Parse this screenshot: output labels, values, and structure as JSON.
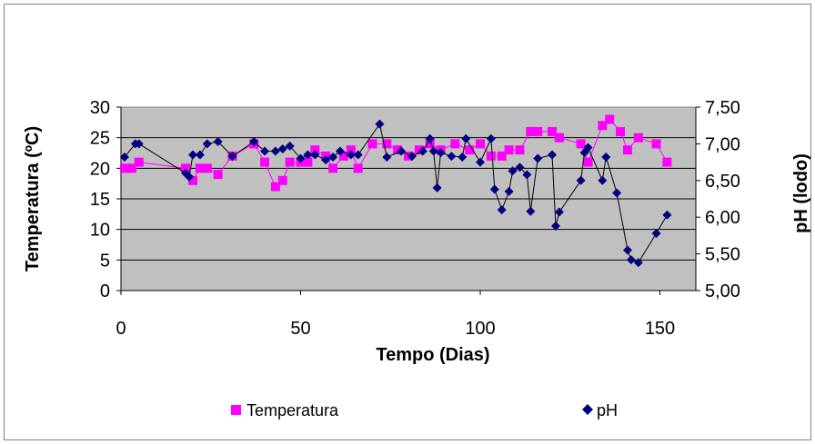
{
  "colors": {
    "plot_bg": "#c0c0c0",
    "temperature": "#ff00ff",
    "ph": "#000080",
    "gridline": "#000000",
    "frame": "#808080"
  },
  "chart_data": {
    "type": "scatter",
    "xlabel": "Tempo (Dias)",
    "ylabel": "Temperatura (ºC)",
    "y2label": "pH (lodo)",
    "xlim": [
      0,
      160
    ],
    "ylim": [
      0,
      30
    ],
    "y2lim": [
      5.0,
      7.5
    ],
    "xticks": [
      "0",
      "50",
      "100",
      "150"
    ],
    "yticks": [
      "0",
      "5",
      "10",
      "15",
      "20",
      "25",
      "30"
    ],
    "y2ticks": [
      "5,00",
      "5,50",
      "6,00",
      "6,50",
      "7,00",
      "7,50"
    ],
    "grid": "horizontal",
    "legend_position": "bottom",
    "series": [
      {
        "name": "Temperatura",
        "marker": "square",
        "axis": "left",
        "x": [
          1,
          3,
          5,
          18,
          20,
          22,
          24,
          27,
          31,
          37,
          40,
          43,
          45,
          47,
          50,
          52,
          54,
          57,
          59,
          62,
          64,
          66,
          70,
          74,
          77,
          80,
          83,
          86,
          89,
          93,
          97,
          100,
          103,
          106,
          108,
          111,
          114,
          116,
          120,
          122,
          128,
          130,
          134,
          136,
          139,
          141,
          144,
          149,
          152
        ],
        "y": [
          20,
          20,
          21,
          20,
          18,
          20,
          20,
          19,
          22,
          24,
          21,
          17,
          18,
          21,
          21,
          21,
          23,
          22,
          20,
          22,
          23,
          20,
          24,
          24,
          23,
          22,
          23,
          24,
          23,
          24,
          23,
          24,
          22,
          22,
          23,
          23,
          26,
          26,
          26,
          25,
          24,
          21,
          27,
          28,
          26,
          23,
          25,
          24,
          21
        ]
      },
      {
        "name": "pH",
        "marker": "diamond",
        "axis": "right",
        "x": [
          1,
          4,
          5,
          18,
          19,
          20,
          22,
          24,
          27,
          31,
          37,
          40,
          43,
          45,
          47,
          50,
          52,
          54,
          57,
          59,
          61,
          64,
          66,
          72,
          74,
          78,
          81,
          84,
          86,
          87,
          88,
          89,
          92,
          95,
          96,
          100,
          103,
          104,
          106,
          108,
          109,
          111,
          113,
          114,
          116,
          120,
          121,
          122,
          128,
          129,
          130,
          134,
          135,
          138,
          141,
          142,
          144,
          149,
          152
        ],
        "y": [
          6.82,
          7.0,
          7.0,
          6.6,
          6.55,
          6.85,
          6.85,
          7.0,
          7.03,
          6.83,
          7.03,
          6.9,
          6.9,
          6.93,
          6.97,
          6.8,
          6.85,
          6.85,
          6.78,
          6.82,
          6.9,
          6.85,
          6.85,
          7.27,
          6.82,
          6.9,
          6.83,
          6.9,
          7.07,
          6.9,
          6.4,
          6.88,
          6.83,
          6.82,
          7.07,
          6.75,
          7.07,
          6.38,
          6.1,
          6.35,
          6.63,
          6.68,
          6.58,
          6.08,
          6.8,
          6.85,
          5.88,
          6.07,
          6.5,
          6.88,
          6.95,
          6.5,
          6.82,
          6.33,
          5.55,
          5.42,
          5.38,
          5.78,
          6.03
        ]
      }
    ]
  }
}
